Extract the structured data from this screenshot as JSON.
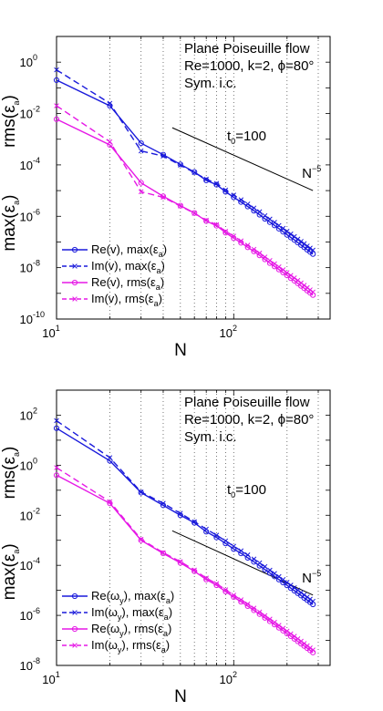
{
  "chart_data": [
    {
      "type": "line",
      "xscale": "log",
      "yscale": "log",
      "xlim": [
        10,
        350
      ],
      "ylim": [
        1e-10,
        10
      ],
      "grid": "x-dotted",
      "xlabel": "N",
      "ylabel_top": "rms(ε_a)",
      "ylabel_bottom": "max(ε_a)",
      "x_ticks": [
        {
          "base": "10",
          "exp": "1",
          "value": 10
        },
        {
          "base": "10",
          "exp": "2",
          "value": 100
        }
      ],
      "y_ticks": [
        {
          "base": "10",
          "exp": "0",
          "value": 1
        },
        {
          "base": "10",
          "exp": "-2",
          "value": 0.01
        },
        {
          "base": "10",
          "exp": "-4",
          "value": 0.0001
        },
        {
          "base": "10",
          "exp": "-6",
          "value": 1e-06
        },
        {
          "base": "10",
          "exp": "-8",
          "value": 1e-08
        },
        {
          "base": "10",
          "exp": "-10",
          "value": 1e-10
        }
      ],
      "annotation_lines": [
        "Plane Poiseuille flow",
        "Re=1000, k=2, ϕ=80°",
        "Sym. i.c."
      ],
      "t0_label": {
        "main": "t",
        "sub": "0",
        "rest": "=100"
      },
      "ref_line": {
        "label_base": "N",
        "label_exp": "−5",
        "x": [
          45,
          280
        ],
        "y": [
          0.0028,
          1e-05
        ]
      },
      "legend_position": "bottom-left",
      "legend": [
        {
          "seg": [
            "Re(v), max(ε",
            "a",
            ")"
          ],
          "color": "#1a1adb",
          "dash": false,
          "marker": "circle"
        },
        {
          "seg": [
            "Im(v), max(ε",
            "a",
            ")"
          ],
          "color": "#1a1adb",
          "dash": true,
          "marker": "x"
        },
        {
          "seg": [
            "Re(v), rms(ε",
            "a",
            ")"
          ],
          "color": "#e619e6",
          "dash": false,
          "marker": "circle"
        },
        {
          "seg": [
            "Im(v), rms(ε",
            "a",
            ")"
          ],
          "color": "#e619e6",
          "dash": true,
          "marker": "x"
        }
      ],
      "series": [
        {
          "name": "Re(v), max(ε_a)",
          "color": "#1a1adb",
          "dash": false,
          "marker": "circle",
          "x": [
            10,
            20,
            30,
            40,
            50,
            60,
            70,
            80,
            90,
            100,
            110,
            120,
            130,
            140,
            150,
            160,
            170,
            180,
            190,
            200,
            210,
            220,
            230,
            240,
            250,
            260,
            270,
            280
          ],
          "y": [
            0.2,
            0.02,
            0.0007,
            0.00025,
            0.000105,
            5.3e-05,
            2.5e-05,
            1.7e-05,
            9e-06,
            5.5e-06,
            3.6e-06,
            2.4e-06,
            1.65e-06,
            1.15e-06,
            8e-07,
            5.9e-07,
            4.4e-07,
            3.3e-07,
            2.5e-07,
            1.9e-07,
            1.5e-07,
            1.2e-07,
            9.5e-08,
            7.6e-08,
            6.2e-08,
            5e-08,
            4.1e-08,
            3.4e-08
          ]
        },
        {
          "name": "Im(v), max(ε_a)",
          "color": "#1a1adb",
          "dash": true,
          "marker": "x",
          "x": [
            10,
            20,
            30,
            40,
            50,
            60,
            70,
            80,
            90,
            100,
            110,
            120,
            130,
            140,
            150,
            160,
            170,
            180,
            190,
            200,
            210,
            220,
            230,
            240,
            250,
            260,
            270,
            280
          ],
          "y": [
            0.5,
            0.025,
            0.00035,
            0.00022,
            9.8e-05,
            5e-05,
            2.8e-05,
            1.9e-05,
            1.05e-05,
            6.7e-06,
            4.4e-06,
            3e-06,
            2.1e-06,
            1.5e-06,
            1.05e-06,
            7.8e-07,
            5.8e-07,
            4.4e-07,
            3.4e-07,
            2.6e-07,
            2.05e-07,
            1.62e-07,
            1.3e-07,
            1.05e-07,
            8.6e-08,
            7e-08,
            5.8e-08,
            4.8e-08
          ]
        },
        {
          "name": "Re(v), rms(ε_a)",
          "color": "#e619e6",
          "dash": false,
          "marker": "circle",
          "x": [
            10,
            20,
            30,
            40,
            50,
            60,
            70,
            80,
            90,
            100,
            110,
            120,
            130,
            140,
            150,
            160,
            170,
            180,
            190,
            200,
            210,
            220,
            230,
            240,
            250,
            260,
            270,
            280
          ],
          "y": [
            0.006,
            0.0006,
            2e-05,
            6e-06,
            2.6e-06,
            1.35e-06,
            6.5e-07,
            4.3e-07,
            2.3e-07,
            1.4e-07,
            9.3e-08,
            6.2e-08,
            4.3e-08,
            3e-08,
            2.1e-08,
            1.5e-08,
            1.12e-08,
            8.5e-09,
            6.5e-09,
            5e-09,
            3.9e-09,
            3.1e-09,
            2.45e-09,
            1.95e-09,
            1.58e-09,
            1.28e-09,
            1.05e-09,
            8.6e-10
          ]
        },
        {
          "name": "Im(v), rms(ε_a)",
          "color": "#e619e6",
          "dash": true,
          "marker": "x",
          "x": [
            10,
            20,
            30,
            40,
            50,
            60,
            70,
            80,
            90,
            100,
            110,
            120,
            130,
            140,
            150,
            160,
            170,
            180,
            190,
            200,
            210,
            220,
            230,
            240,
            250,
            260,
            270,
            280
          ],
          "y": [
            0.02,
            0.0008,
            9e-06,
            5.5e-06,
            2.5e-06,
            1.3e-06,
            7e-07,
            4.7e-07,
            2.6e-07,
            1.7e-07,
            1.1e-07,
            7.5e-08,
            5.2e-08,
            3.7e-08,
            2.6e-08,
            1.9e-08,
            1.42e-08,
            1.08e-08,
            8.3e-09,
            6.4e-09,
            5e-09,
            4e-09,
            3.2e-09,
            2.55e-09,
            2.05e-09,
            1.67e-09,
            1.37e-09,
            1.13e-09
          ]
        }
      ]
    },
    {
      "type": "line",
      "xscale": "log",
      "yscale": "log",
      "xlim": [
        10,
        350
      ],
      "ylim": [
        1e-08,
        1000
      ],
      "grid": "x-dotted",
      "xlabel": "N",
      "ylabel_top": "rms(ε_a)",
      "ylabel_bottom": "max(ε_a)",
      "x_ticks": [
        {
          "base": "10",
          "exp": "1",
          "value": 10
        },
        {
          "base": "10",
          "exp": "2",
          "value": 100
        }
      ],
      "y_ticks": [
        {
          "base": "10",
          "exp": "2",
          "value": 100
        },
        {
          "base": "10",
          "exp": "0",
          "value": 1
        },
        {
          "base": "10",
          "exp": "-2",
          "value": 0.01
        },
        {
          "base": "10",
          "exp": "-4",
          "value": 0.0001
        },
        {
          "base": "10",
          "exp": "-6",
          "value": 1e-06
        },
        {
          "base": "10",
          "exp": "-8",
          "value": 1e-08
        }
      ],
      "annotation_lines": [
        "Plane Poiseuille flow",
        "Re=1000, k=2, ϕ=80°",
        "Sym. i.c."
      ],
      "t0_label": {
        "main": "t",
        "sub": "0",
        "rest": "=100"
      },
      "ref_line": {
        "label_base": "N",
        "label_exp": "−5",
        "x": [
          45,
          280
        ],
        "y": [
          0.0024,
          6.5e-06
        ]
      },
      "legend_position": "bottom-left",
      "legend": [
        {
          "seg": [
            "Re(ω",
            "y",
            "), max(ε",
            "a",
            ")"
          ],
          "color": "#1a1adb",
          "dash": false,
          "marker": "circle"
        },
        {
          "seg": [
            "Im(ω",
            "y",
            "), max(ε",
            "a",
            ")"
          ],
          "color": "#1a1adb",
          "dash": true,
          "marker": "x"
        },
        {
          "seg": [
            "Re(ω",
            "y",
            "), rms(ε",
            "a",
            ")"
          ],
          "color": "#e619e6",
          "dash": false,
          "marker": "circle"
        },
        {
          "seg": [
            "Im(ω",
            "y",
            "), rms(ε",
            "a",
            ")"
          ],
          "color": "#e619e6",
          "dash": true,
          "marker": "x"
        }
      ],
      "series": [
        {
          "name": "Re(ω_y), max(ε_a)",
          "color": "#1a1adb",
          "dash": false,
          "marker": "circle",
          "x": [
            10,
            20,
            30,
            40,
            50,
            60,
            70,
            80,
            90,
            100,
            110,
            120,
            130,
            140,
            150,
            160,
            170,
            180,
            190,
            200,
            210,
            220,
            230,
            240,
            250,
            260,
            270,
            280
          ],
          "y": [
            30,
            1.5,
            0.08,
            0.025,
            0.01,
            0.005,
            0.0022,
            0.0013,
            0.00075,
            0.00045,
            0.0003,
            0.0002,
            0.000138,
            9.6e-05,
            6.8e-05,
            4.9e-05,
            3.6e-05,
            2.7e-05,
            2.05e-05,
            1.58e-05,
            1.23e-05,
            9.7e-06,
            7.7e-06,
            6.2e-06,
            5e-06,
            4.1e-06,
            3.35e-06,
            2.75e-06
          ]
        },
        {
          "name": "Im(ω_y), max(ε_a)",
          "color": "#1a1adb",
          "dash": true,
          "marker": "x",
          "x": [
            10,
            20,
            30,
            40,
            50,
            60,
            70,
            80,
            90,
            100,
            110,
            120,
            130,
            140,
            150,
            160,
            170,
            180,
            190,
            200,
            210,
            220,
            230,
            240,
            250,
            260,
            270,
            280
          ],
          "y": [
            60,
            2,
            0.085,
            0.03,
            0.012,
            0.0055,
            0.0028,
            0.0016,
            0.00095,
            0.00058,
            0.00038,
            0.00026,
            0.000178,
            0.000125,
            8.9e-05,
            6.4e-05,
            4.7e-05,
            3.55e-05,
            2.7e-05,
            2.08e-05,
            1.62e-05,
            1.28e-05,
            1.02e-05,
            8.2e-06,
            6.6e-06,
            5.4e-06,
            4.45e-06,
            3.65e-06
          ]
        },
        {
          "name": "Re(ω_y), rms(ε_a)",
          "color": "#e619e6",
          "dash": false,
          "marker": "circle",
          "x": [
            10,
            20,
            30,
            40,
            50,
            60,
            70,
            80,
            90,
            100,
            110,
            120,
            130,
            140,
            150,
            160,
            170,
            180,
            190,
            200,
            210,
            220,
            230,
            240,
            250,
            260,
            270,
            280
          ],
          "y": [
            0.4,
            0.03,
            0.001,
            0.0003,
            0.000125,
            5.8e-05,
            2.7e-05,
            1.6e-05,
            9e-06,
            5.4e-06,
            3.5e-06,
            2.35e-06,
            1.6e-06,
            1.12e-06,
            8e-07,
            5.8e-07,
            4.3e-07,
            3.2e-07,
            2.45e-07,
            1.88e-07,
            1.47e-07,
            1.16e-07,
            9.2e-08,
            7.4e-08,
            6e-08,
            4.9e-08,
            4e-08,
            3.3e-08
          ]
        },
        {
          "name": "Im(ω_y), rms(ε_a)",
          "color": "#e619e6",
          "dash": true,
          "marker": "x",
          "x": [
            10,
            20,
            30,
            40,
            50,
            60,
            70,
            80,
            90,
            100,
            110,
            120,
            130,
            140,
            150,
            160,
            170,
            180,
            190,
            200,
            210,
            220,
            230,
            240,
            250,
            260,
            270,
            280
          ],
          "y": [
            0.8,
            0.035,
            0.0011,
            0.00032,
            0.00014,
            6.5e-05,
            3.1e-05,
            1.85e-05,
            1.05e-05,
            6.4e-06,
            4.2e-06,
            2.85e-06,
            1.95e-06,
            1.37e-06,
            9.8e-07,
            7.1e-07,
            5.3e-07,
            4e-07,
            3.05e-07,
            2.35e-07,
            1.84e-07,
            1.46e-07,
            1.16e-07,
            9.3e-08,
            7.5e-08,
            6.1e-08,
            5e-08,
            4.15e-08
          ]
        }
      ]
    }
  ]
}
